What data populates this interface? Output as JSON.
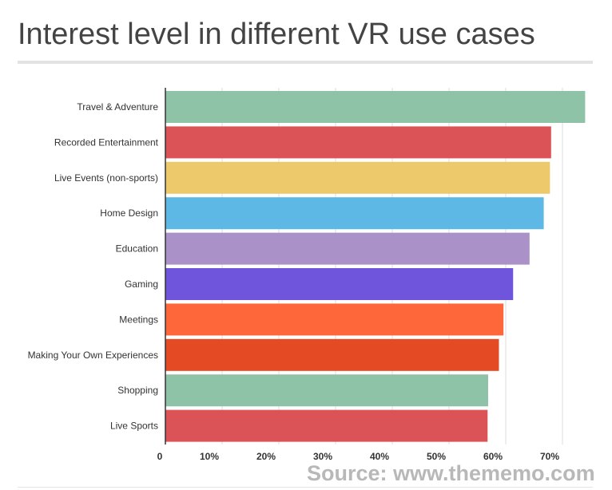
{
  "title": "Interest level in different VR use cases",
  "source": "Source: www.thememo.com",
  "chart_data": {
    "type": "bar",
    "orientation": "horizontal",
    "title": "Interest level in different VR use cases",
    "xlabel": "",
    "ylabel": "",
    "xlim": [
      0,
      74
    ],
    "grid": true,
    "legend": "none",
    "x_ticks": [
      "0",
      "10%",
      "20%",
      "30%",
      "40%",
      "50%",
      "60%",
      "70%"
    ],
    "categories": [
      "Travel & Adventure",
      "Recorded Entertainment",
      "Live Events (non-sports)",
      "Home Design",
      "Education",
      "Gaming",
      "Meetings",
      "Making Your Own Experiences",
      "Shopping",
      "Live Sports"
    ],
    "values": [
      74,
      68,
      67.8,
      66.7,
      64.2,
      61.3,
      59.6,
      58.8,
      56.9,
      56.8
    ],
    "colors": [
      "#8fc3a8",
      "#dc5357",
      "#eec96b",
      "#5db8e6",
      "#aa92c9",
      "#6e55db",
      "#fd673a",
      "#e44b24",
      "#8fc3a8",
      "#dc5357"
    ]
  }
}
